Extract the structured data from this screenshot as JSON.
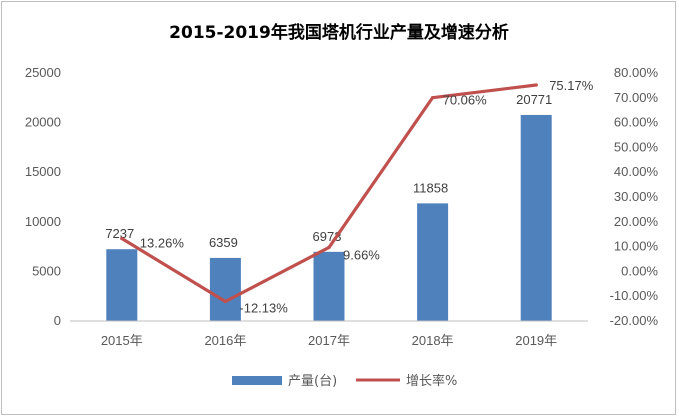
{
  "chart_data": {
    "type": "bar",
    "title": "2015-2019年我国塔机行业产量及增速分析",
    "categories": [
      "2015年",
      "2016年",
      "2017年",
      "2018年",
      "2019年"
    ],
    "series": [
      {
        "name": "产量(台)",
        "type": "bar",
        "axis": "left",
        "values": [
          7237,
          6359,
          6973,
          11858,
          20771
        ],
        "labels": [
          "7237",
          "6359",
          "6973",
          "11858",
          "20771"
        ],
        "color": "#4f81bd"
      },
      {
        "name": "增长率%",
        "type": "line",
        "axis": "right",
        "values": [
          13.26,
          -12.13,
          9.66,
          70.06,
          75.17
        ],
        "labels": [
          "13.26%",
          "-12.13%",
          "9.66%",
          "70.06%",
          "75.17%"
        ],
        "color": "#c0504d"
      }
    ],
    "y_left": {
      "lim": [
        0,
        25000
      ],
      "ticks": [
        "0",
        "5000",
        "10000",
        "15000",
        "20000",
        "25000"
      ]
    },
    "y_right": {
      "lim": [
        -20,
        80
      ],
      "ticks": [
        "-20.00%",
        "-10.00%",
        "0.00%",
        "10.00%",
        "20.00%",
        "30.00%",
        "40.00%",
        "50.00%",
        "60.00%",
        "70.00%",
        "80.00%"
      ]
    },
    "grid": false,
    "legend": "bottom"
  }
}
